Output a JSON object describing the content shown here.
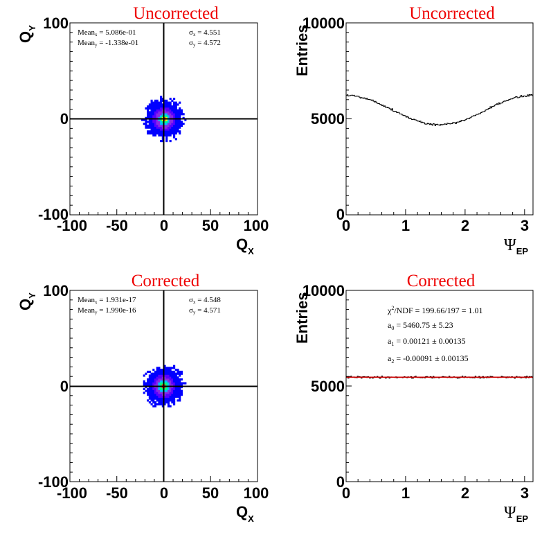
{
  "chart_data": [
    {
      "type": "heatmap",
      "title": "Uncorrected",
      "xlabel": "Q",
      "xlabel_sub": "X",
      "ylabel": "Q",
      "ylabel_sub": "Y",
      "xlim": [
        -100,
        100
      ],
      "ylim": [
        -100,
        100
      ],
      "x_ticks": [
        "-100",
        "-50",
        "0",
        "50",
        "100"
      ],
      "y_ticks": [
        "100",
        "0",
        "-100"
      ],
      "stats": {
        "mean_x_label": "Mean",
        "mean_x_sub": "x",
        "mean_x": " = 5.086e-01",
        "mean_y_label": "Mean",
        "mean_y_sub": "y",
        "mean_y": " = -1.338e-01",
        "sigma_x_label": "σ",
        "sigma_x_sub": "x",
        "sigma_x": " = 4.551",
        "sigma_y_label": "σ",
        "sigma_y_sub": "y",
        "sigma_y": " = 4.572"
      },
      "distribution": {
        "center": [
          0.5,
          -0.1
        ],
        "sigma": [
          4.55,
          4.57
        ],
        "extent": 24
      },
      "colors": [
        "#0000ff",
        "#5a00ff",
        "#8a2be2",
        "#00c0ff",
        "#00ff80",
        "#ffff00",
        "#ff4000"
      ]
    },
    {
      "type": "line",
      "title": "Uncorrected",
      "xlabel": "Ψ",
      "xlabel_sub": "EP",
      "ylabel": "Entries",
      "xlim": [
        0,
        3.1416
      ],
      "ylim": [
        0,
        10000
      ],
      "x_ticks": [
        "0",
        "1",
        "2",
        "3"
      ],
      "y_ticks": [
        "10000",
        "5000",
        "0"
      ],
      "series": [
        {
          "model": "a0 + a1 cos(2x)",
          "params": {
            "a0": 5460,
            "a1": 770
          },
          "x": [
            0,
            0.5,
            1.0,
            1.2,
            1.4,
            1.6,
            2.0,
            2.5,
            3.1
          ],
          "values": [
            6230,
            5880,
            5140,
            4850,
            4700,
            4690,
            5130,
            5930,
            6230
          ],
          "noise": 55,
          "color": "#000000"
        }
      ]
    },
    {
      "type": "heatmap",
      "title": "Corrected",
      "xlabel": "Q",
      "xlabel_sub": "X",
      "ylabel": "Q",
      "ylabel_sub": "Y",
      "xlim": [
        -100,
        100
      ],
      "ylim": [
        -100,
        100
      ],
      "x_ticks": [
        "-100",
        "-50",
        "0",
        "50",
        "100"
      ],
      "y_ticks": [
        "100",
        "0",
        "-100"
      ],
      "stats": {
        "mean_x_label": "Mean",
        "mean_x_sub": "x",
        "mean_x": " = 1.931e-17",
        "mean_y_label": "Mean",
        "mean_y_sub": "y",
        "mean_y": " = 1.990e-16",
        "sigma_x_label": "σ",
        "sigma_x_sub": "x",
        "sigma_x": " = 4.548",
        "sigma_y_label": "σ",
        "sigma_y_sub": "y",
        "sigma_y": " = 4.571"
      },
      "distribution": {
        "center": [
          0,
          0
        ],
        "sigma": [
          4.55,
          4.57
        ],
        "extent": 24
      },
      "colors": [
        "#0000ff",
        "#5a00ff",
        "#8a2be2",
        "#00c0ff",
        "#00ff80",
        "#ffff00",
        "#ff4000"
      ]
    },
    {
      "type": "line",
      "title": "Corrected",
      "xlabel": "Ψ",
      "xlabel_sub": "EP",
      "ylabel": "Entries",
      "xlim": [
        0,
        3.1416
      ],
      "ylim": [
        0,
        10000
      ],
      "x_ticks": [
        "0",
        "1",
        "2",
        "3"
      ],
      "y_ticks": [
        "10000",
        "5000",
        "0"
      ],
      "series": [
        {
          "model": "flat",
          "x": [
            0,
            3.1416
          ],
          "values": [
            5460,
            5460
          ],
          "noise": 55,
          "color": "#000000"
        },
        {
          "model": "fit a0 + a1 cos(2x) + a2 sin(2x)",
          "x": [
            0,
            3.1416
          ],
          "values": [
            5461,
            5461
          ],
          "color": "#cc0000"
        }
      ],
      "fit": {
        "chi_label": "χ",
        "chi_sup": "2",
        "chi_value": "/NDF    = 199.66/197  =  1.01",
        "a0_label": "a",
        "a0_sub": "0",
        "a0_value": "    = 5460.75 ± 5.23",
        "a1_label": "a",
        "a1_sub": "1",
        "a1_value": "    = 0.00121 ± 0.00135",
        "a2_label": "a",
        "a2_sub": "2",
        "a2_value": "    = -0.00091 ± 0.00135"
      }
    }
  ]
}
